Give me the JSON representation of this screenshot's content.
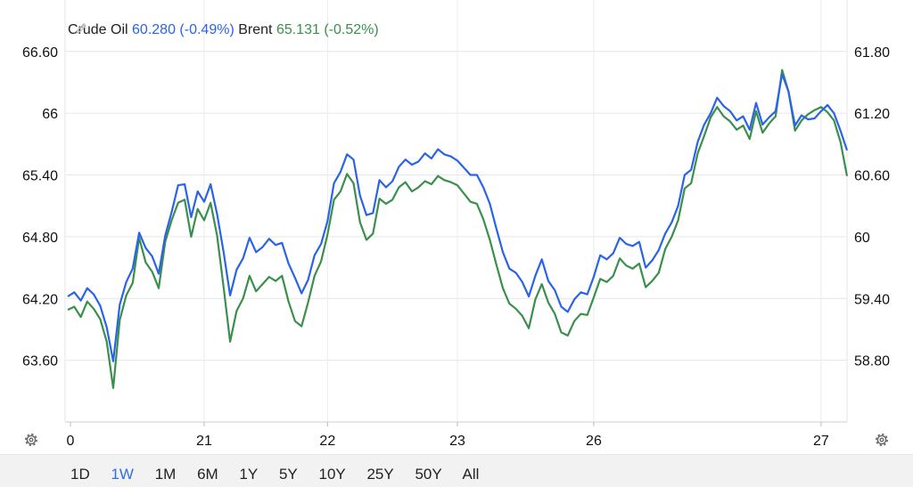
{
  "legend": [
    {
      "name": "Crude Oil",
      "value": "60.280",
      "change": "(-0.49%)",
      "color": "#2b63e8"
    },
    {
      "name": "Brent",
      "value": "65.131",
      "change": "(-0.52%)",
      "color": "#3b8f4c"
    }
  ],
  "ranges": [
    "1D",
    "1W",
    "1M",
    "6M",
    "1Y",
    "5Y",
    "10Y",
    "25Y",
    "50Y",
    "All"
  ],
  "active_range": "1W",
  "icons": {
    "settings_left": "gear-icon",
    "settings_right": "gear-icon",
    "edit": "pencil-icon"
  },
  "chart_data": {
    "type": "line",
    "x_ticks": [
      "0",
      "21",
      "22",
      "23",
      "26",
      "27"
    ],
    "y_left_ticks": [
      "63.60",
      "64.20",
      "64.80",
      "65.40",
      "66",
      "66.60"
    ],
    "y_right_ticks": [
      "58.80",
      "59.40",
      "60",
      "60.60",
      "61.20",
      "61.80"
    ],
    "ylim_left": [
      63.0,
      67.1
    ],
    "ylim_right": [
      58.2,
      62.3
    ],
    "grid": true,
    "x": [
      0,
      0.05,
      0.1,
      0.15,
      0.2,
      0.25,
      0.3,
      0.35,
      0.4,
      0.45,
      0.5,
      0.55,
      0.6,
      0.65,
      0.7,
      0.75,
      0.8,
      0.85,
      0.9,
      0.95,
      1.0,
      1.05,
      1.1,
      1.15,
      1.2,
      1.25,
      1.3,
      1.35,
      1.4,
      1.45,
      1.5,
      1.55,
      1.6,
      1.65,
      1.7,
      1.75,
      1.8,
      1.85,
      1.9,
      1.95,
      2.0,
      2.05,
      2.1,
      2.15,
      2.2,
      2.25,
      2.3,
      2.35,
      2.4,
      2.45,
      2.5,
      2.55,
      2.6,
      2.65,
      2.7,
      2.75,
      2.8,
      2.85,
      2.9,
      2.95,
      3.0,
      3.05,
      3.1,
      3.15,
      3.2,
      3.25,
      3.3,
      3.35,
      3.4,
      3.45,
      3.5,
      3.55,
      3.6,
      3.65,
      3.7,
      3.75,
      3.8,
      3.85,
      3.9,
      3.95,
      4.0,
      4.05,
      4.1,
      4.15,
      4.2,
      4.25,
      4.3,
      4.35,
      4.4,
      4.45,
      4.5,
      4.55,
      4.6,
      4.65,
      4.7,
      4.75,
      4.8,
      4.85,
      4.9,
      4.95,
      5.0,
      5.05,
      5.1,
      5.15,
      5.2,
      5.25,
      5.3,
      5.35,
      5.4,
      5.45,
      5.5,
      5.55,
      5.6,
      5.65,
      5.7,
      5.75,
      5.8,
      5.85,
      5.9,
      5.95,
      6.0
    ],
    "series": [
      {
        "name": "Crude Oil",
        "axis": "right",
        "values": [
          59.42,
          59.46,
          59.38,
          59.5,
          59.44,
          59.33,
          59.12,
          58.79,
          59.34,
          59.56,
          59.69,
          60.04,
          59.89,
          59.81,
          59.64,
          60.01,
          60.24,
          60.5,
          60.51,
          60.19,
          60.44,
          60.34,
          60.51,
          60.22,
          59.85,
          59.43,
          59.68,
          59.79,
          59.99,
          59.85,
          59.9,
          59.98,
          59.92,
          59.94,
          59.74,
          59.6,
          59.45,
          59.58,
          59.82,
          59.93,
          60.15,
          60.52,
          60.63,
          60.8,
          60.75,
          60.4,
          60.21,
          60.23,
          60.55,
          60.48,
          60.54,
          60.68,
          60.75,
          60.7,
          60.73,
          60.81,
          60.76,
          60.85,
          60.8,
          60.78,
          60.74,
          60.67,
          60.6,
          60.6,
          60.48,
          60.32,
          60.08,
          59.85,
          59.69,
          59.65,
          59.56,
          59.42,
          59.62,
          59.78,
          59.57,
          59.48,
          59.32,
          59.27,
          59.39,
          59.46,
          59.44,
          59.61,
          59.82,
          59.78,
          59.84,
          59.99,
          59.93,
          59.91,
          59.95,
          59.7,
          59.77,
          59.87,
          60.03,
          60.14,
          60.3,
          60.6,
          60.65,
          60.92,
          61.09,
          61.2,
          61.35,
          61.27,
          61.22,
          61.13,
          61.17,
          61.04,
          61.3,
          61.09,
          61.16,
          61.22,
          61.58,
          61.41,
          61.08,
          61.18,
          61.14,
          61.15,
          61.22,
          61.28,
          61.2,
          61.03,
          60.84
        ]
      },
      {
        "name": "Brent",
        "axis": "left",
        "values": [
          64.09,
          64.12,
          64.02,
          64.17,
          64.1,
          64.0,
          63.78,
          63.33,
          63.99,
          64.23,
          64.35,
          64.79,
          64.55,
          64.46,
          64.3,
          64.75,
          64.96,
          65.13,
          65.16,
          64.8,
          65.07,
          64.96,
          65.13,
          64.81,
          64.31,
          63.78,
          64.08,
          64.2,
          64.42,
          64.27,
          64.34,
          64.41,
          64.37,
          64.42,
          64.17,
          63.98,
          63.93,
          64.16,
          64.42,
          64.56,
          64.82,
          65.16,
          65.24,
          65.41,
          65.32,
          64.94,
          64.77,
          64.83,
          65.17,
          65.12,
          65.16,
          65.28,
          65.33,
          65.24,
          65.28,
          65.34,
          65.31,
          65.39,
          65.35,
          65.33,
          65.3,
          65.22,
          65.14,
          65.12,
          64.97,
          64.77,
          64.53,
          64.3,
          64.15,
          64.1,
          64.03,
          63.91,
          64.19,
          64.34,
          64.16,
          64.05,
          63.87,
          63.84,
          63.98,
          64.05,
          64.04,
          64.21,
          64.39,
          64.36,
          64.42,
          64.59,
          64.52,
          64.49,
          64.54,
          64.31,
          64.37,
          64.45,
          64.68,
          64.8,
          64.96,
          65.27,
          65.32,
          65.61,
          65.78,
          65.96,
          66.06,
          65.97,
          65.92,
          65.84,
          65.88,
          65.75,
          66.02,
          65.81,
          65.9,
          65.97,
          66.42,
          66.21,
          65.83,
          65.93,
          65.99,
          66.03,
          66.06,
          66.01,
          65.93,
          65.72,
          65.39
        ]
      }
    ]
  }
}
